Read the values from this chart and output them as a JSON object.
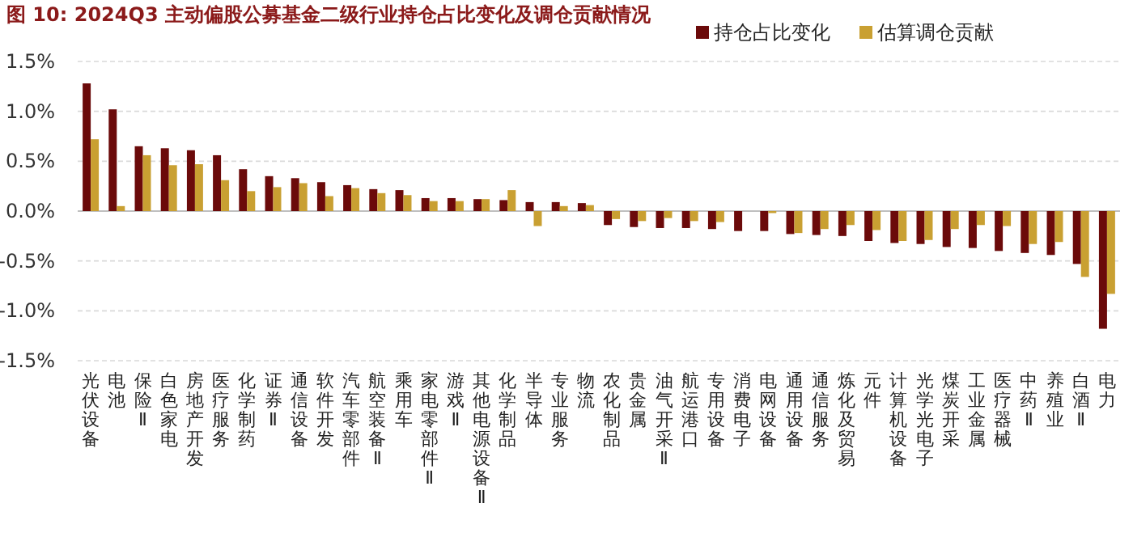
{
  "chart_data": {
    "type": "bar",
    "title": "图 10: 2024Q3 主动偏股公募基金二级行业持仓占比变化及调仓贡献情况",
    "categories": [
      "光伏设备",
      "电池",
      "保险Ⅱ",
      "白色家电",
      "房地产开发",
      "医疗服务",
      "化学制药",
      "证券Ⅱ",
      "通信设备",
      "软件开发",
      "汽车零部件",
      "航空装备Ⅱ",
      "乘用车",
      "家电零部件Ⅱ",
      "游戏Ⅱ",
      "其他电源设备Ⅱ",
      "化学制品",
      "半导体",
      "专业服务",
      "物流",
      "农化制品",
      "贵金属",
      "油气开采Ⅱ",
      "航运港口",
      "专用设备",
      "消费电子",
      "电网设备",
      "通用设备",
      "通信服务",
      "炼化及贸易",
      "元件",
      "计算机设备",
      "光学光电子",
      "煤炭开采",
      "工业金属",
      "医疗器械",
      "中药Ⅱ",
      "养殖业",
      "白酒Ⅱ",
      "电力"
    ],
    "series": [
      {
        "name": "持仓占比变化",
        "color": "#6b0a0a",
        "values": [
          1.28,
          1.02,
          0.65,
          0.63,
          0.61,
          0.56,
          0.42,
          0.35,
          0.33,
          0.29,
          0.26,
          0.22,
          0.21,
          0.13,
          0.13,
          0.12,
          0.11,
          0.09,
          0.09,
          0.08,
          -0.14,
          -0.16,
          -0.17,
          -0.17,
          -0.18,
          -0.2,
          -0.2,
          -0.23,
          -0.24,
          -0.25,
          -0.3,
          -0.32,
          -0.33,
          -0.36,
          -0.37,
          -0.4,
          -0.42,
          -0.44,
          -0.53,
          -1.18
        ]
      },
      {
        "name": "估算调仓贡献",
        "color": "#c9a032",
        "values": [
          0.72,
          0.05,
          0.56,
          0.46,
          0.47,
          0.31,
          0.2,
          0.24,
          0.28,
          0.15,
          0.23,
          0.18,
          0.16,
          0.1,
          0.1,
          0.12,
          0.21,
          -0.15,
          0.05,
          0.06,
          -0.08,
          -0.1,
          -0.07,
          -0.1,
          -0.11,
          0.0,
          -0.02,
          -0.22,
          -0.18,
          -0.14,
          -0.19,
          -0.3,
          -0.29,
          -0.18,
          -0.14,
          -0.15,
          -0.33,
          -0.31,
          -0.66,
          -0.83
        ]
      }
    ],
    "ylim": [
      -1.5,
      1.5
    ],
    "yticks": [
      {
        "value": -1.5,
        "label": "-1.5%"
      },
      {
        "value": -1.0,
        "label": "-1.0%"
      },
      {
        "value": -0.5,
        "label": "-0.5%"
      },
      {
        "value": 0,
        "label": "0.0%"
      },
      {
        "value": 0.5,
        "label": "0.5%"
      },
      {
        "value": 1.0,
        "label": "1.0%"
      },
      {
        "value": 1.5,
        "label": "1.5%"
      }
    ],
    "grid": "y",
    "legend": "top right"
  }
}
